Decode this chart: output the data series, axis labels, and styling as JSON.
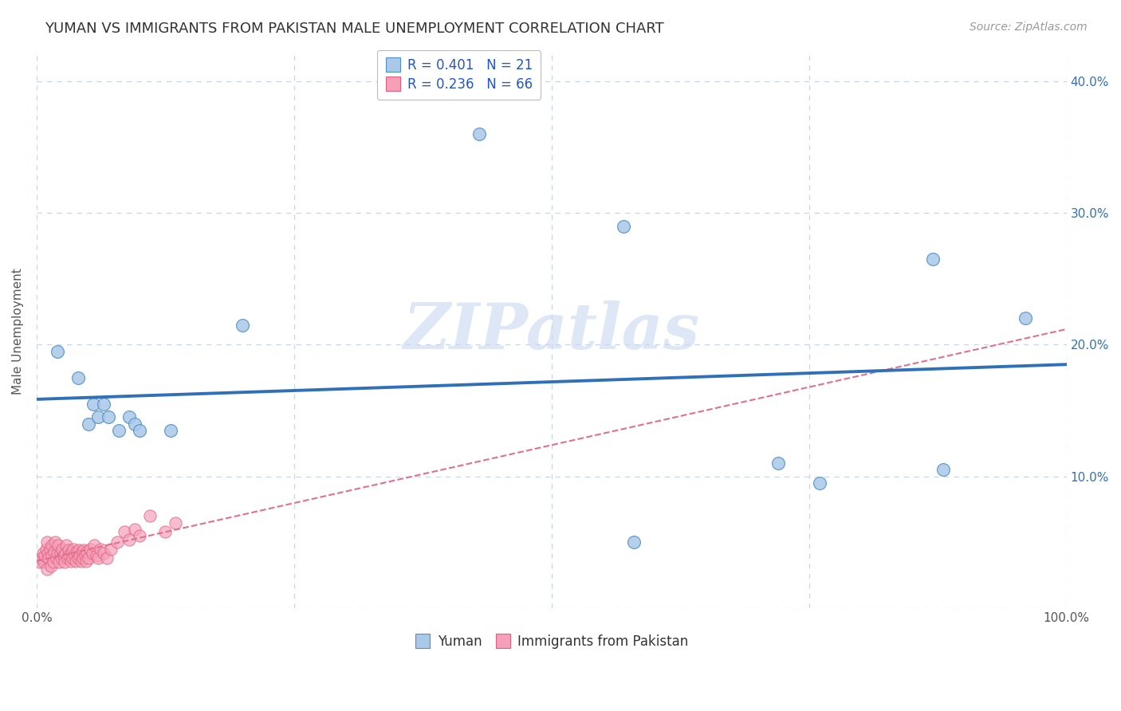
{
  "title": "YUMAN VS IMMIGRANTS FROM PAKISTAN MALE UNEMPLOYMENT CORRELATION CHART",
  "source": "Source: ZipAtlas.com",
  "ylabel": "Male Unemployment",
  "xlim": [
    0,
    1.0
  ],
  "ylim": [
    0,
    0.42
  ],
  "yticks": [
    0.0,
    0.1,
    0.2,
    0.3,
    0.4
  ],
  "xticks": [
    0.0,
    0.25,
    0.5,
    0.75,
    1.0
  ],
  "xtick_labels": [
    "0.0%",
    "",
    "",
    "",
    "100.0%"
  ],
  "ytick_labels_right": [
    "",
    "10.0%",
    "20.0%",
    "30.0%",
    "40.0%"
  ],
  "yuman_R": 0.401,
  "yuman_N": 21,
  "pakistan_R": 0.236,
  "pakistan_N": 66,
  "yuman_color": "#aac8e8",
  "pakistan_color": "#f5a0b8",
  "yuman_edge_color": "#5090c8",
  "pakistan_edge_color": "#e06080",
  "yuman_line_color": "#3070b8",
  "pakistan_line_color": "#e07090",
  "watermark": "ZIPatlas",
  "background_color": "#ffffff",
  "grid_color": "#c8d4e8",
  "legend_label_1": "Yuman",
  "legend_label_2": "Immigrants from Pakistan",
  "yuman_x": [
    0.02,
    0.04,
    0.05,
    0.055,
    0.06,
    0.065,
    0.07,
    0.08,
    0.09,
    0.095,
    0.1,
    0.13,
    0.2,
    0.43,
    0.57,
    0.58,
    0.72,
    0.76,
    0.87,
    0.88,
    0.96
  ],
  "yuman_y": [
    0.195,
    0.175,
    0.14,
    0.155,
    0.145,
    0.155,
    0.145,
    0.135,
    0.145,
    0.14,
    0.135,
    0.135,
    0.215,
    0.36,
    0.29,
    0.05,
    0.11,
    0.095,
    0.265,
    0.105,
    0.22
  ],
  "pakistan_x": [
    0.003,
    0.005,
    0.006,
    0.007,
    0.008,
    0.009,
    0.01,
    0.01,
    0.011,
    0.012,
    0.013,
    0.014,
    0.015,
    0.015,
    0.016,
    0.017,
    0.018,
    0.019,
    0.02,
    0.021,
    0.022,
    0.023,
    0.024,
    0.025,
    0.026,
    0.027,
    0.028,
    0.029,
    0.03,
    0.031,
    0.032,
    0.033,
    0.034,
    0.035,
    0.036,
    0.037,
    0.038,
    0.039,
    0.04,
    0.041,
    0.042,
    0.043,
    0.044,
    0.045,
    0.046,
    0.047,
    0.048,
    0.049,
    0.05,
    0.052,
    0.054,
    0.056,
    0.058,
    0.06,
    0.062,
    0.065,
    0.068,
    0.072,
    0.078,
    0.085,
    0.09,
    0.095,
    0.1,
    0.11,
    0.125,
    0.135
  ],
  "pakistan_y": [
    0.035,
    0.038,
    0.042,
    0.035,
    0.04,
    0.045,
    0.03,
    0.05,
    0.042,
    0.038,
    0.045,
    0.032,
    0.048,
    0.04,
    0.035,
    0.043,
    0.05,
    0.038,
    0.042,
    0.048,
    0.035,
    0.042,
    0.038,
    0.045,
    0.04,
    0.035,
    0.042,
    0.048,
    0.038,
    0.044,
    0.04,
    0.036,
    0.043,
    0.038,
    0.045,
    0.04,
    0.036,
    0.043,
    0.038,
    0.044,
    0.04,
    0.036,
    0.043,
    0.038,
    0.044,
    0.04,
    0.036,
    0.043,
    0.038,
    0.045,
    0.042,
    0.048,
    0.04,
    0.038,
    0.045,
    0.042,
    0.038,
    0.045,
    0.05,
    0.058,
    0.052,
    0.06,
    0.055,
    0.07,
    0.058,
    0.065
  ],
  "title_fontsize": 13,
  "source_fontsize": 10,
  "tick_fontsize": 11,
  "ylabel_fontsize": 11,
  "legend_fontsize": 12
}
